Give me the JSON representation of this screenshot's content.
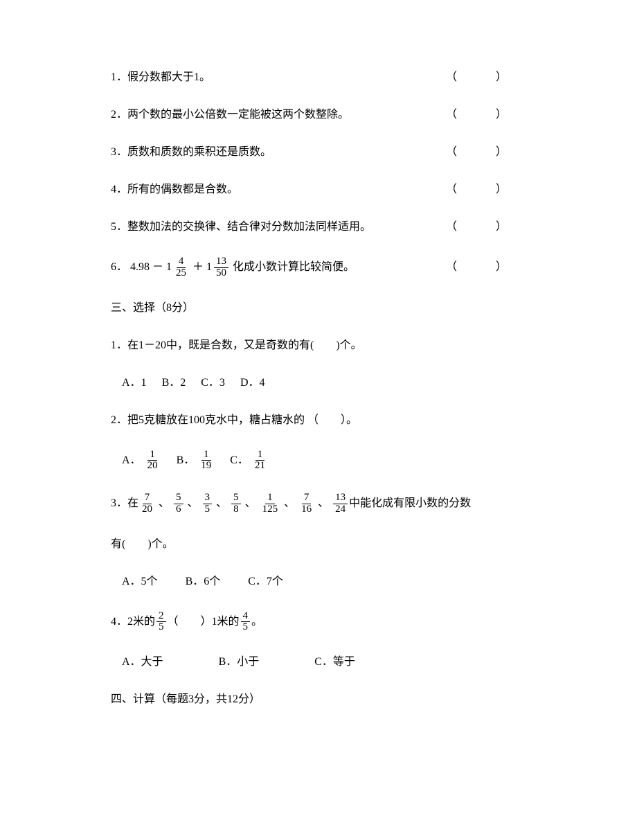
{
  "tf": {
    "q1": {
      "text": "1．假分数都大于1。",
      "paren": "（　　）"
    },
    "q2": {
      "text": "2．两个数的最小公倍数一定能被这两个数整除。",
      "paren": "（　　）"
    },
    "q3": {
      "text": "3．质数和质数的乘积还是质数。",
      "paren": "（　　）"
    },
    "q4": {
      "text": "4．所有的偶数都是合数。",
      "paren": "（　　）"
    },
    "q5": {
      "text": "5．整数加法的交换律、结合律对分数加法同样适用。",
      "paren": "（　　）"
    },
    "q6": {
      "lead": "6．",
      "val": "4.98",
      "minus": "－",
      "m1_whole": "1",
      "m1_num": "4",
      "m1_den": "25",
      "plus": "＋",
      "m2_whole": "1",
      "m2_num": "13",
      "m2_den": "50",
      "tail": " 化成小数计算比较简便。",
      "paren": "（　　）"
    }
  },
  "sec3": {
    "title": "三、选择（8分）"
  },
  "mc": {
    "q1": {
      "text": "1．在1－20中，既是合数，又是奇数的有(　　)个。",
      "opts": {
        "a": "A．1",
        "b": "B．2",
        "c": "C．3",
        "d": "D．4"
      }
    },
    "q2": {
      "text": "2．把5克糖放在100克水中，糖占糖水的 （　　）。",
      "opts": {
        "a": {
          "label": "A．",
          "num": "1",
          "den": "20"
        },
        "b": {
          "label": "B．",
          "num": "1",
          "den": "19"
        },
        "c": {
          "label": "C．",
          "num": "1",
          "den": "21"
        }
      }
    },
    "q3": {
      "lead": "3．在",
      "fracs": [
        {
          "num": "7",
          "den": "20"
        },
        {
          "num": "5",
          "den": "6"
        },
        {
          "num": "3",
          "den": "5"
        },
        {
          "num": "5",
          "den": "8"
        },
        {
          "num": "1",
          "den": "125"
        },
        {
          "num": "7",
          "den": "16"
        },
        {
          "num": "13",
          "den": "24"
        }
      ],
      "sep": "、",
      "tail": "中能化成有限小数的分数",
      "line2": "有(　　)个。",
      "opts": {
        "a": "A．5个",
        "b": "B．6个",
        "c": "C．7个"
      }
    },
    "q4": {
      "lead": "4．",
      "p1": "2米的",
      "f1_num": "2",
      "f1_den": "5",
      "mid": "（　　）1米的",
      "f2_num": "4",
      "f2_den": "5",
      "end": "。",
      "opts": {
        "a": "A．大于",
        "b": "B．小于",
        "c": "C．等于"
      }
    }
  },
  "sec4": {
    "title": "四、计算（每题3分，共12分）"
  }
}
